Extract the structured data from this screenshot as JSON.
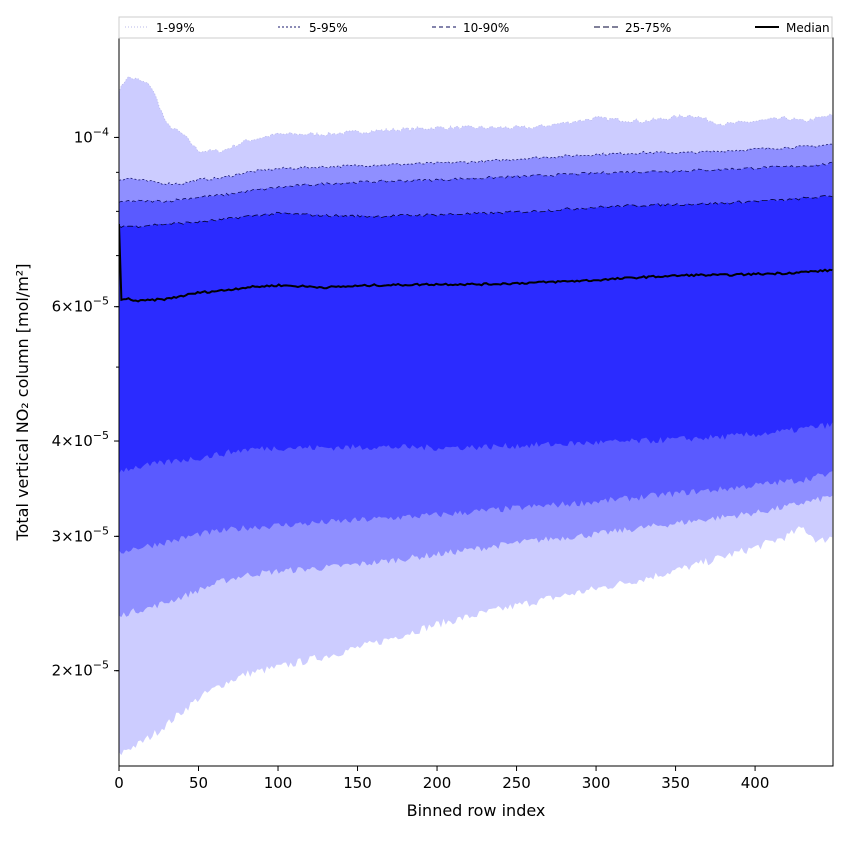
{
  "chart_data": {
    "type": "area",
    "xlabel": "Binned row index",
    "ylabel": "Total vertical NO₂ column [mol/m²]",
    "y_scale": "log",
    "xlim": [
      0,
      449
    ],
    "ylim": [
      1.5e-05,
      0.000135
    ],
    "x_ticks": [
      0,
      50,
      100,
      150,
      200,
      250,
      300,
      350,
      400
    ],
    "y_ticks": [
      {
        "value": 0.0001,
        "label_base": "10",
        "label_exp": "−4",
        "style": "power"
      },
      {
        "value": 6e-05,
        "label_base": "6×10",
        "label_exp": "−5",
        "style": "mantissa"
      },
      {
        "value": 4e-05,
        "label_base": "4×10",
        "label_exp": "−5",
        "style": "mantissa"
      },
      {
        "value": 3e-05,
        "label_base": "3×10",
        "label_exp": "−5",
        "style": "mantissa"
      },
      {
        "value": 2e-05,
        "label_base": "2×10",
        "label_exp": "−5",
        "style": "mantissa"
      }
    ],
    "grid": false,
    "legend_position": "top",
    "x": [
      0,
      5,
      12,
      20,
      30,
      40,
      50,
      65,
      80,
      100,
      130,
      160,
      200,
      230,
      260,
      300,
      330,
      360,
      380,
      400,
      420,
      430,
      440,
      449
    ],
    "bands": [
      {
        "name": "1-99%",
        "fill": "#ccccff",
        "line": "#b8b8e8",
        "dash": "1,2",
        "low": [
          1.55e-05,
          1.58e-05,
          1.6e-05,
          1.64e-05,
          1.7e-05,
          1.77e-05,
          1.84e-05,
          1.92e-05,
          1.98e-05,
          2.02e-05,
          2.09e-05,
          2.17e-05,
          2.3e-05,
          2.38e-05,
          2.46e-05,
          2.56e-05,
          2.64e-05,
          2.74e-05,
          2.82e-05,
          2.9e-05,
          3e-05,
          3.08e-05,
          2.95e-05,
          3e-05
        ],
        "high": [
          0.000115,
          0.00012,
          0.000119,
          0.000117,
          0.000104,
          0.000101,
          9.6e-05,
          9.6e-05,
          9.9e-05,
          0.000101,
          0.000101,
          0.000102,
          0.000103,
          0.000103,
          0.000103,
          0.000106,
          0.000105,
          0.000107,
          0.000104,
          0.000105,
          0.000106,
          0.000105,
          0.000106,
          0.000107
        ]
      },
      {
        "name": "5-95%",
        "fill": "#8f8fff",
        "line": "#1a1a6e",
        "dash": "2,2",
        "low": [
          2.35e-05,
          2.38e-05,
          2.4e-05,
          2.42e-05,
          2.46e-05,
          2.5e-05,
          2.55e-05,
          2.62e-05,
          2.67e-05,
          2.7e-05,
          2.73e-05,
          2.77e-05,
          2.84e-05,
          2.9e-05,
          2.96e-05,
          3.02e-05,
          3.08e-05,
          3.14e-05,
          3.18e-05,
          3.22e-05,
          3.28e-05,
          3.32e-05,
          3.35e-05,
          3.4e-05
        ],
        "high": [
          8.8e-05,
          8.85e-05,
          8.8e-05,
          8.75e-05,
          8.7e-05,
          8.7e-05,
          8.8e-05,
          8.85e-05,
          9e-05,
          9.1e-05,
          9.15e-05,
          9.2e-05,
          9.25e-05,
          9.3e-05,
          9.4e-05,
          9.5e-05,
          9.55e-05,
          9.55e-05,
          9.6e-05,
          9.65e-05,
          9.7e-05,
          9.72e-05,
          9.75e-05,
          9.8e-05
        ]
      },
      {
        "name": "10-90%",
        "fill": "#5a5aff",
        "line": "#0a0a5a",
        "dash": "4,3",
        "low": [
          2.85e-05,
          2.88e-05,
          2.9e-05,
          2.92e-05,
          2.95e-05,
          2.98e-05,
          3.02e-05,
          3.05e-05,
          3.08e-05,
          3.1e-05,
          3.13e-05,
          3.16e-05,
          3.2e-05,
          3.24e-05,
          3.28e-05,
          3.33e-05,
          3.38e-05,
          3.43e-05,
          3.46e-05,
          3.5e-05,
          3.54e-05,
          3.56e-05,
          3.6e-05,
          3.62e-05
        ],
        "high": [
          8.2e-05,
          8.25e-05,
          8.25e-05,
          8.25e-05,
          8.25e-05,
          8.3e-05,
          8.35e-05,
          8.4e-05,
          8.5e-05,
          8.6e-05,
          8.7e-05,
          8.75e-05,
          8.8e-05,
          8.85e-05,
          8.9e-05,
          8.98e-05,
          9.02e-05,
          9.05e-05,
          9.08e-05,
          9.12e-05,
          9.15e-05,
          9.18e-05,
          9.2e-05,
          9.25e-05
        ]
      },
      {
        "name": "25-75%",
        "fill": "#2b2bff",
        "line": "#000033",
        "dash": "6,3",
        "low": [
          3.65e-05,
          3.68e-05,
          3.7e-05,
          3.72e-05,
          3.75e-05,
          3.78e-05,
          3.8e-05,
          3.85e-05,
          3.9e-05,
          3.92e-05,
          3.92e-05,
          3.93e-05,
          3.92e-05,
          3.93e-05,
          3.95e-05,
          3.98e-05,
          4e-05,
          4.03e-05,
          4.05e-05,
          4.08e-05,
          4.12e-05,
          4.15e-05,
          4.18e-05,
          4.2e-05
        ],
        "high": [
          7.65e-05,
          7.65e-05,
          7.65e-05,
          7.68e-05,
          7.7e-05,
          7.72e-05,
          7.75e-05,
          7.8e-05,
          7.88e-05,
          7.95e-05,
          7.9e-05,
          7.88e-05,
          7.92e-05,
          7.95e-05,
          8e-05,
          8.1e-05,
          8.15e-05,
          8.18e-05,
          8.2e-05,
          8.25e-05,
          8.28e-05,
          8.32e-05,
          8.35e-05,
          8.38e-05
        ]
      }
    ],
    "median": {
      "name": "Median",
      "color": "#000000",
      "values": [
        6.1e-05,
        6.15e-05,
        6.1e-05,
        6.12e-05,
        6.14e-05,
        6.2e-05,
        6.26e-05,
        6.3e-05,
        6.36e-05,
        6.4e-05,
        6.36e-05,
        6.4e-05,
        6.42e-05,
        6.42e-05,
        6.45e-05,
        6.5e-05,
        6.56e-05,
        6.6e-05,
        6.6e-05,
        6.62e-05,
        6.64e-05,
        6.66e-05,
        6.68e-05,
        6.7e-05
      ]
    },
    "median_start_spike": 7.7e-05
  }
}
